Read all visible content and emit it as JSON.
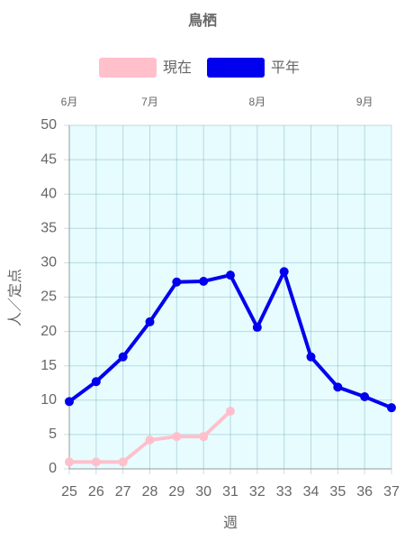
{
  "chart_data": {
    "type": "line",
    "title": "鳥栖",
    "x": [
      25,
      26,
      27,
      28,
      29,
      30,
      31,
      32,
      33,
      34,
      35,
      36,
      37
    ],
    "xlim": [
      25,
      37
    ],
    "xticks": [
      25,
      26,
      27,
      28,
      29,
      30,
      31,
      32,
      33,
      34,
      35,
      36,
      37
    ],
    "x2ticks": [
      {
        "value": 25,
        "label": "6月"
      },
      {
        "value": 28,
        "label": "7月"
      },
      {
        "value": 32,
        "label": "8月"
      },
      {
        "value": 36,
        "label": "9月"
      }
    ],
    "ylim": [
      0,
      50
    ],
    "yticks": [
      0,
      5,
      10,
      15,
      20,
      25,
      30,
      35,
      40,
      45,
      50
    ],
    "xlabel": "週",
    "ylabel": "人／定点",
    "grid": true,
    "legend": "top",
    "series": [
      {
        "name": "現在",
        "color": "#ffc0cb",
        "values": [
          1.0,
          1.0,
          1.0,
          4.2,
          4.7,
          4.7,
          8.4,
          null,
          null,
          null,
          null,
          null,
          null
        ]
      },
      {
        "name": "平年",
        "color": "#0000ee",
        "values": [
          9.8,
          12.7,
          16.3,
          21.4,
          27.2,
          27.3,
          28.2,
          20.6,
          28.7,
          16.3,
          11.9,
          10.5,
          8.9
        ]
      }
    ]
  }
}
